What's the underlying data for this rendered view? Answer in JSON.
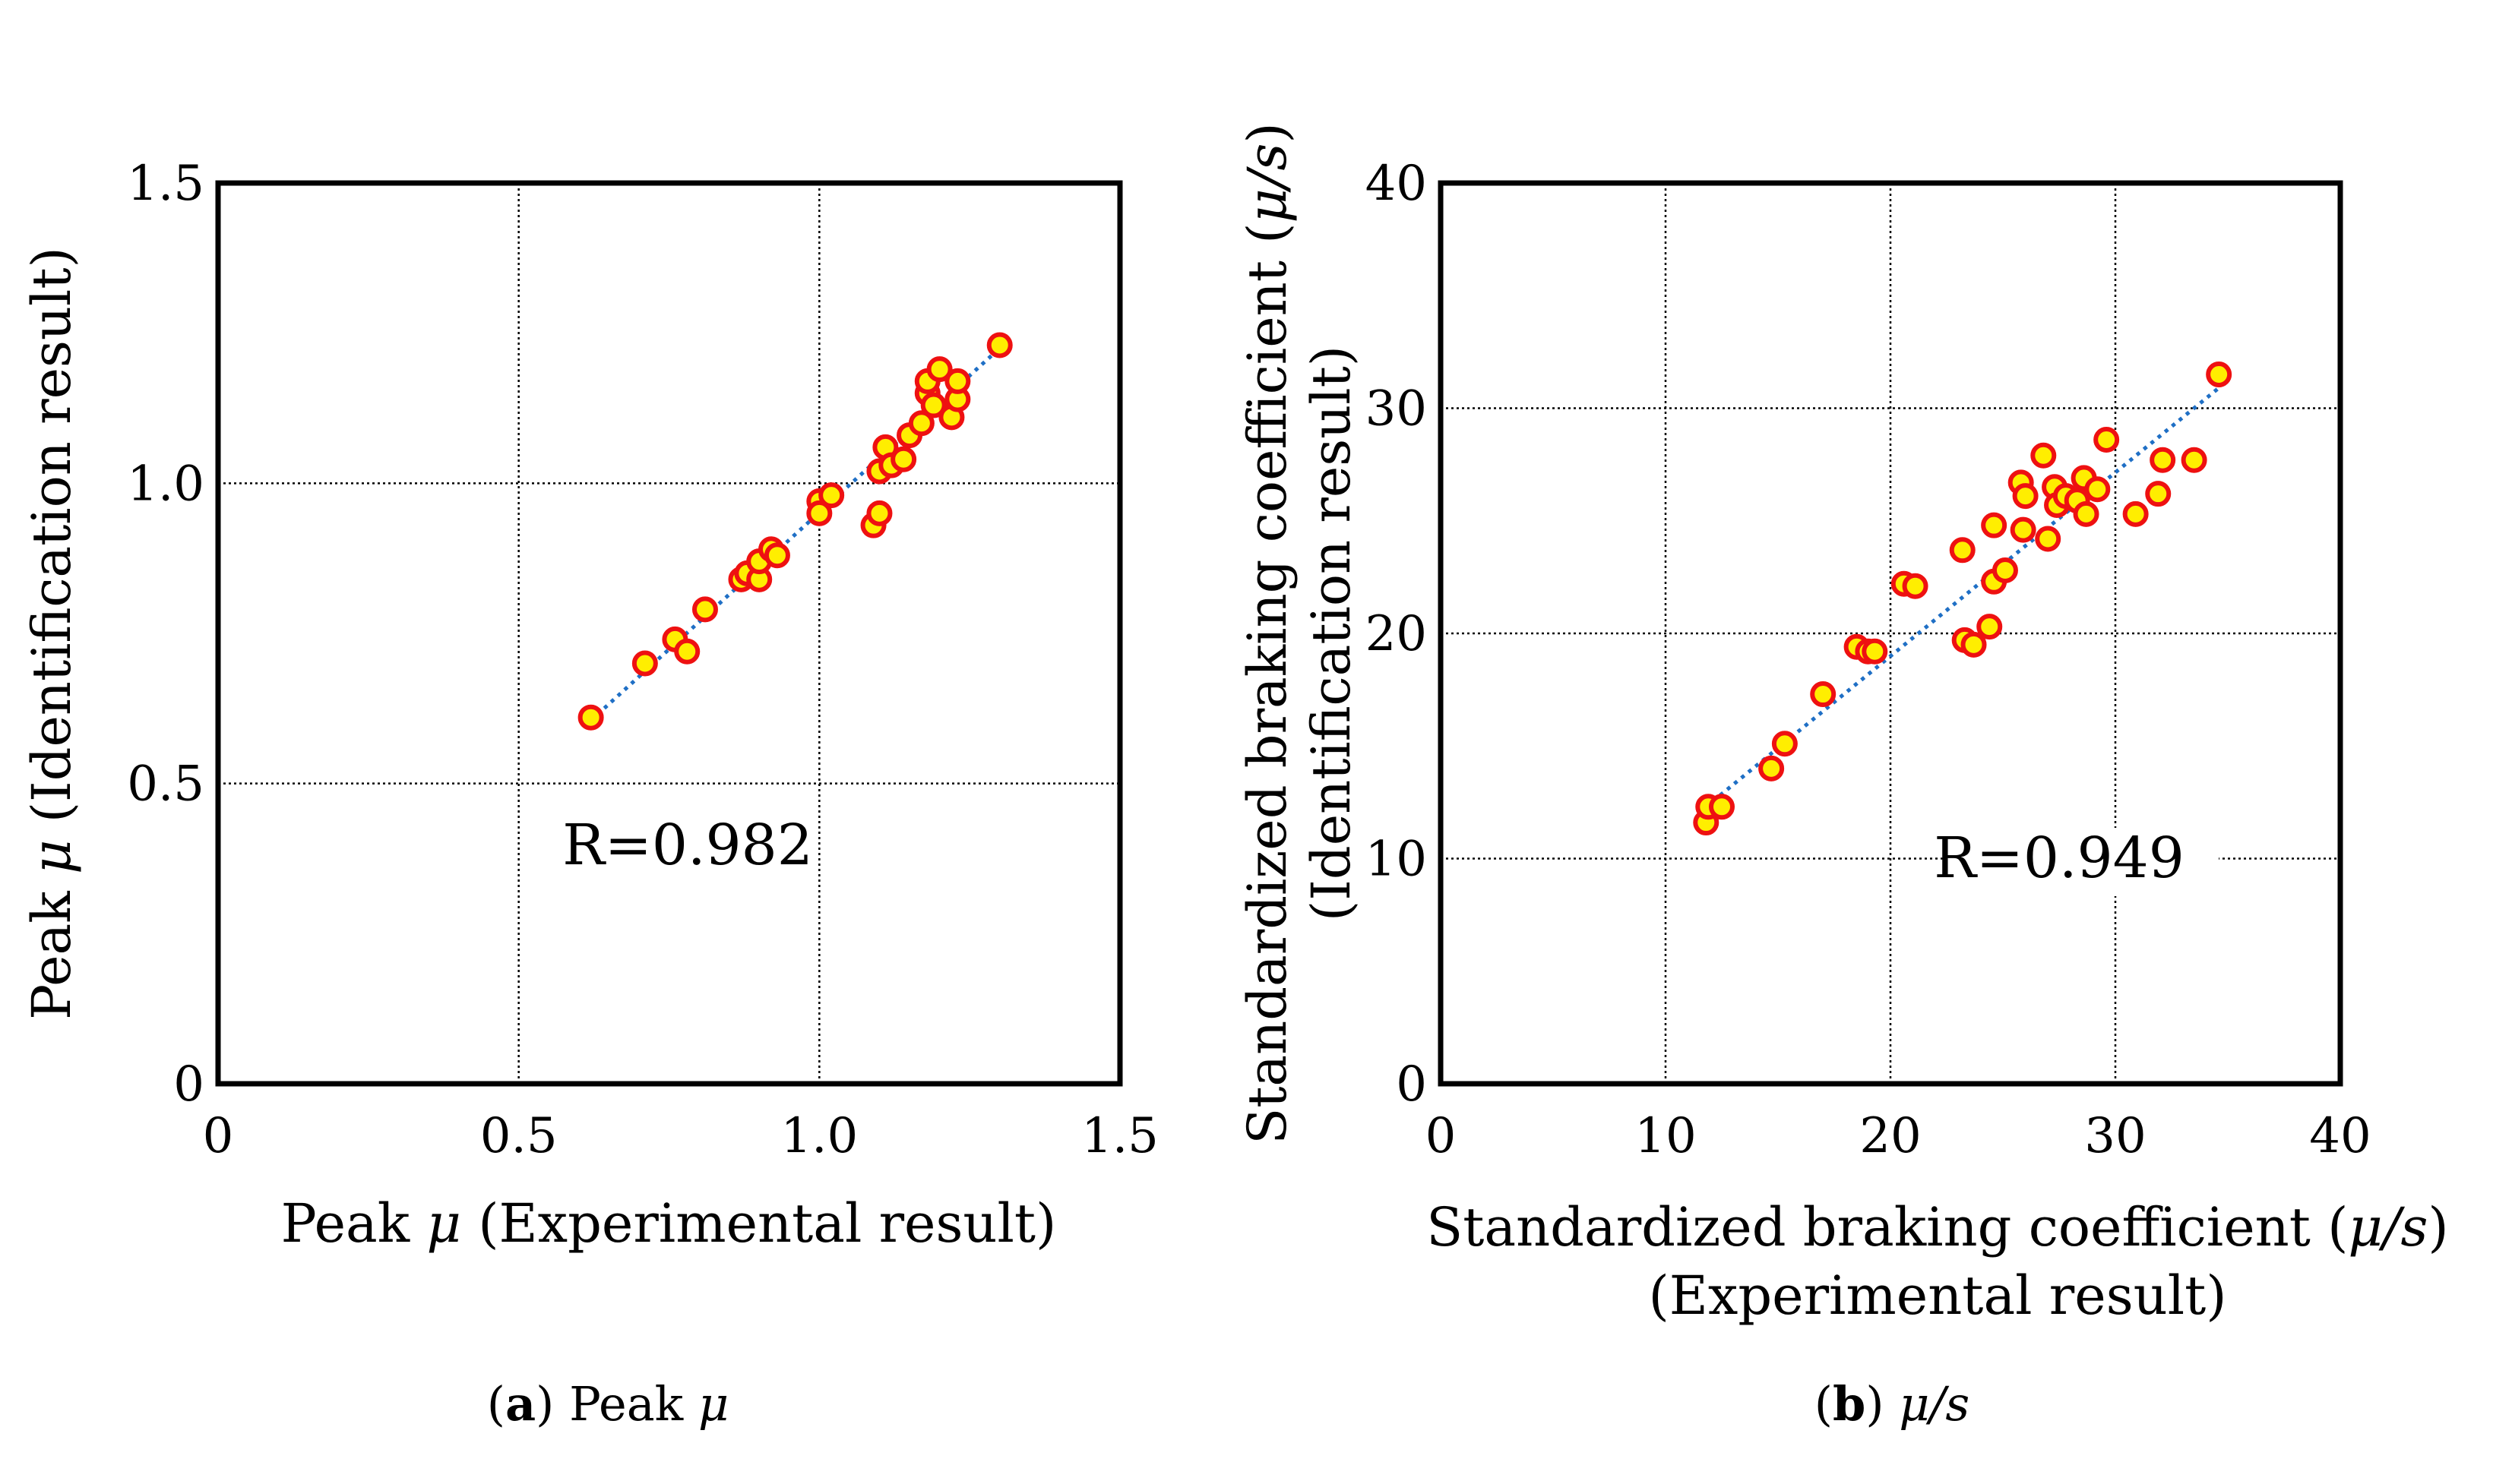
{
  "figure_a": {
    "annotation": "R=0.982",
    "caption_letter": "a",
    "caption_text": " Peak ",
    "caption_symbol": "μ",
    "ylabel_pre": "Peak ",
    "ylabel_symbol": "μ",
    "ylabel_post": " (Identification result)",
    "xlabel_pre": "Peak ",
    "xlabel_symbol": "μ",
    "xlabel_post": " (Experimental result)"
  },
  "figure_b": {
    "annotation": "R=0.949",
    "caption_letter": "b",
    "caption_symbol": "μ/s",
    "ylabel_line1_pre": "Standardized braking coefficient (",
    "ylabel_line1_symbol": "μ/s",
    "ylabel_line1_post": ")",
    "ylabel_line2": "(Identification result)",
    "xlabel_line1_pre": "Standardized braking coefficient (",
    "xlabel_line1_symbol": "μ/s",
    "xlabel_line1_post": ")",
    "xlabel_line2": "(Experimental result)"
  },
  "colors": {
    "marker_fill": "#ffee00",
    "marker_edge": "#ee1111",
    "trendline": "#1f6fc5"
  },
  "chart_data": [
    {
      "type": "scatter",
      "title": "Peak μ",
      "xlabel": "Peak μ (Experimental result)",
      "ylabel": "Peak μ (Identification result)",
      "xlim": [
        0,
        1.5
      ],
      "ylim": [
        0,
        1.5
      ],
      "xticks": [
        "0",
        "0.5",
        "1.0",
        "1.5"
      ],
      "yticks": [
        "0",
        "0.5",
        "1.0",
        "1.5"
      ],
      "grid": true,
      "trendline": {
        "x": [
          0.62,
          1.3
        ],
        "y": [
          0.605,
          1.225
        ]
      },
      "points": [
        [
          0.62,
          0.61
        ],
        [
          0.71,
          0.7
        ],
        [
          0.76,
          0.74
        ],
        [
          0.78,
          0.72
        ],
        [
          0.81,
          0.79
        ],
        [
          0.87,
          0.84
        ],
        [
          0.88,
          0.85
        ],
        [
          0.9,
          0.84
        ],
        [
          0.9,
          0.87
        ],
        [
          0.92,
          0.89
        ],
        [
          0.93,
          0.88
        ],
        [
          1.0,
          0.97
        ],
        [
          1.0,
          0.95
        ],
        [
          1.02,
          0.98
        ],
        [
          1.09,
          0.93
        ],
        [
          1.1,
          0.95
        ],
        [
          1.1,
          1.02
        ],
        [
          1.11,
          1.06
        ],
        [
          1.12,
          1.03
        ],
        [
          1.14,
          1.04
        ],
        [
          1.15,
          1.08
        ],
        [
          1.17,
          1.1
        ],
        [
          1.18,
          1.15
        ],
        [
          1.18,
          1.17
        ],
        [
          1.19,
          1.13
        ],
        [
          1.2,
          1.19
        ],
        [
          1.22,
          1.11
        ],
        [
          1.23,
          1.14
        ],
        [
          1.23,
          1.17
        ],
        [
          1.3,
          1.23
        ]
      ]
    },
    {
      "type": "scatter",
      "title": "μ/s",
      "xlabel": "Standardized braking coefficient (μ/s) (Experimental result)",
      "ylabel": "Standardized braking coefficient (μ/s) (Identification result)",
      "xlim": [
        0,
        40
      ],
      "ylim": [
        0,
        40
      ],
      "xticks": [
        "0",
        "10",
        "20",
        "30",
        "40"
      ],
      "yticks": [
        "0",
        "10",
        "20",
        "30",
        "40"
      ],
      "grid": true,
      "trendline": {
        "x": [
          11.8,
          34.6
        ],
        "y": [
          12.3,
          30.9
        ]
      },
      "points": [
        [
          11.8,
          11.6
        ],
        [
          11.9,
          12.3
        ],
        [
          12.5,
          12.3
        ],
        [
          14.7,
          14.0
        ],
        [
          15.3,
          15.1
        ],
        [
          17.0,
          17.3
        ],
        [
          18.5,
          19.4
        ],
        [
          19.0,
          19.2
        ],
        [
          19.3,
          19.2
        ],
        [
          20.6,
          22.2
        ],
        [
          21.1,
          22.1
        ],
        [
          23.2,
          23.7
        ],
        [
          23.3,
          19.7
        ],
        [
          23.7,
          19.5
        ],
        [
          24.4,
          20.3
        ],
        [
          24.6,
          24.8
        ],
        [
          24.6,
          22.3
        ],
        [
          25.1,
          22.8
        ],
        [
          25.8,
          26.7
        ],
        [
          25.9,
          24.6
        ],
        [
          26.0,
          26.1
        ],
        [
          26.8,
          27.9
        ],
        [
          27.0,
          24.2
        ],
        [
          27.3,
          26.5
        ],
        [
          27.4,
          25.7
        ],
        [
          27.8,
          26.1
        ],
        [
          28.3,
          25.9
        ],
        [
          28.6,
          26.9
        ],
        [
          28.7,
          25.3
        ],
        [
          29.2,
          26.4
        ],
        [
          29.6,
          28.6
        ],
        [
          30.9,
          25.3
        ],
        [
          31.9,
          26.2
        ],
        [
          32.1,
          27.7
        ],
        [
          33.5,
          27.7
        ],
        [
          34.6,
          31.5
        ]
      ]
    }
  ]
}
